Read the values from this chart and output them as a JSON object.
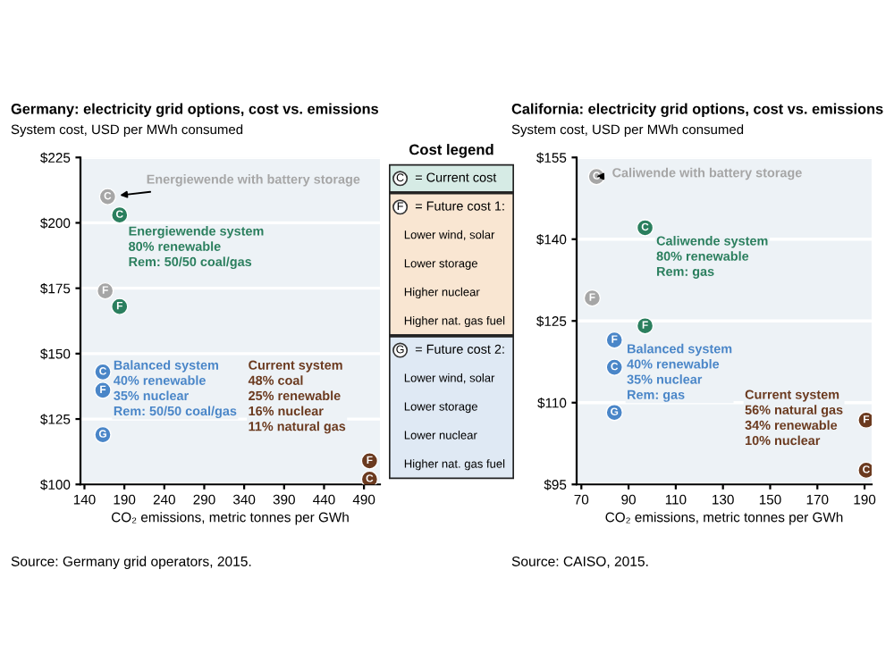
{
  "chart_data": [
    {
      "type": "scatter",
      "title": "Germany: electricity grid options, cost vs. emissions",
      "subtitle": "System cost, USD per MWh consumed",
      "xlabel": "CO₂ emissions, metric tonnes per GWh",
      "xlim": [
        135,
        510
      ],
      "xticks": [
        140,
        190,
        240,
        290,
        340,
        390,
        440,
        490
      ],
      "ylim": [
        100,
        225
      ],
      "yticks": [
        {
          "value": 100,
          "label": "$100"
        },
        {
          "value": 125,
          "label": "$125"
        },
        {
          "value": 150,
          "label": "$150"
        },
        {
          "value": 175,
          "label": "$175"
        },
        {
          "value": 200,
          "label": "$200"
        },
        {
          "value": 225,
          "label": "$225"
        }
      ],
      "grid": "y",
      "marker": "circle",
      "series": [
        {
          "color": "#a6a6a6",
          "x": [
            169,
            166
          ],
          "values": [
            210,
            174
          ],
          "value_labels": [
            "C",
            "F"
          ]
        },
        {
          "color": "#2b7f5e",
          "x": [
            184,
            184
          ],
          "values": [
            203,
            168
          ],
          "value_labels": [
            "C",
            "F"
          ]
        },
        {
          "color": "#4a86c8",
          "x": [
            163,
            163,
            163
          ],
          "values": [
            143,
            136,
            119
          ],
          "value_labels": [
            "C",
            "F",
            "G"
          ]
        },
        {
          "color": "#6b3a1f",
          "x": [
            497,
            497
          ],
          "values": [
            102,
            109
          ],
          "value_labels": [
            "C",
            "F"
          ]
        }
      ],
      "annotations": [
        "Energiewende with battery storage",
        "Energiewende system\n80% renewable\nRem: 50/50 coal/gas",
        "Balanced system\n40% renewable\n35% nuclear\nRem: 50/50 coal/gas",
        "Current system\n48% coal\n25% renewable\n16% nuclear\n11% natural gas",
        "Source: Germany grid operators, 2015."
      ]
    },
    {
      "type": "other",
      "title": "Cost legend",
      "annotations": [
        "C = Current cost",
        "F = Future cost 1:",
        "Lower wind, solar",
        "Lower storage",
        "Higher nuclear",
        "Higher nat. gas fuel",
        "G = Future cost 2:",
        "Lower wind, solar",
        "Lower storage",
        "Lower nuclear",
        "Higher nat. gas fuel"
      ]
    },
    {
      "type": "scatter",
      "title": "California: electricity grid options, cost vs. emissions",
      "subtitle": "System cost, USD per MWh consumed",
      "xlabel": "CO₂ emissions, metric tonnes per GWh",
      "xlim": [
        68,
        193
      ],
      "xticks": [
        70,
        90,
        110,
        130,
        150,
        170,
        190
      ],
      "ylim": [
        95,
        155
      ],
      "yticks": [
        {
          "value": 95,
          "label": "$95"
        },
        {
          "value": 110,
          "label": "$110"
        },
        {
          "value": 125,
          "label": "$125"
        },
        {
          "value": 140,
          "label": "$140"
        },
        {
          "value": 155,
          "label": "$155"
        }
      ],
      "grid": "y",
      "marker": "circle",
      "series": [
        {
          "color": "#a6a6a6",
          "x": [
            76.4,
            74.6
          ],
          "values": [
            151.5,
            129.2
          ],
          "value_labels": [
            "C",
            "F"
          ]
        },
        {
          "color": "#2b7f5e",
          "x": [
            97,
            97
          ],
          "values": [
            142.1,
            124.1
          ],
          "value_labels": [
            "C",
            "F"
          ]
        },
        {
          "color": "#4a86c8",
          "x": [
            84,
            84,
            84
          ],
          "values": [
            121.5,
            116.5,
            108.2
          ],
          "value_labels": [
            "F",
            "C",
            "G"
          ]
        },
        {
          "color": "#6b3a1f",
          "x": [
            190.7,
            190.7
          ],
          "values": [
            106.8,
            97.6
          ],
          "value_labels": [
            "F",
            "C"
          ]
        }
      ],
      "annotations": [
        "Caliwende with battery storage",
        "Caliwende system\n80% renewable\nRem: gas",
        "Balanced system\n40% renewable\n35% nuclear\nRem: gas",
        "Current system\n56% natural gas\n34% renewable\n10% nuclear",
        "Source: CAISO, 2015."
      ]
    }
  ]
}
